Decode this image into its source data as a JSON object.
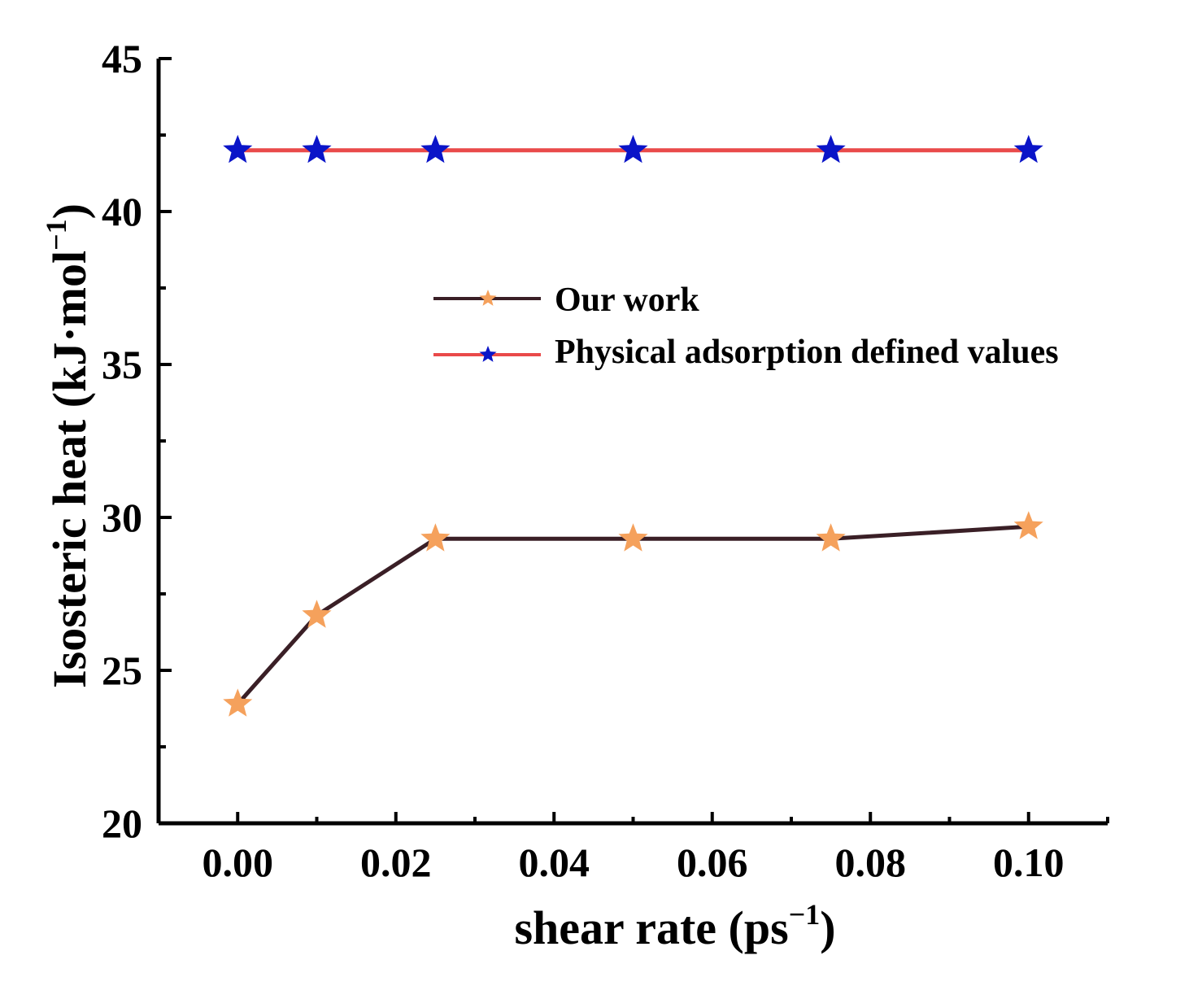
{
  "chart_data": {
    "type": "line",
    "title": "",
    "xlabel": "shear rate (ps",
    "xlabel_sup": "−1",
    "xlabel_close": ")",
    "ylabel": "Isosteric heat (kJ·mol",
    "ylabel_sup": "−1",
    "ylabel_close": ")",
    "xlim": [
      -0.01,
      0.11
    ],
    "ylim": [
      20,
      45
    ],
    "xticks": [
      0.0,
      0.02,
      0.04,
      0.06,
      0.08,
      0.1
    ],
    "xtick_labels": [
      "0.00",
      "0.02",
      "0.04",
      "0.06",
      "0.08",
      "0.10"
    ],
    "yticks": [
      20,
      25,
      30,
      35,
      40,
      45
    ],
    "ytick_labels": [
      "20",
      "25",
      "30",
      "35",
      "40",
      "45"
    ],
    "legend_position": "center-right",
    "series": [
      {
        "name": "Our work",
        "line_color": "#3a1f26",
        "marker_color": "#f5a15c",
        "marker": "star",
        "x": [
          0.0,
          0.01,
          0.025,
          0.05,
          0.075,
          0.1
        ],
        "y": [
          23.9,
          26.8,
          29.3,
          29.3,
          29.3,
          29.7
        ]
      },
      {
        "name": "Physical adsorption defined values",
        "line_color": "#e94a4a",
        "marker_color": "#0a14c8",
        "marker": "star",
        "x": [
          0.0,
          0.01,
          0.025,
          0.05,
          0.075,
          0.1
        ],
        "y": [
          42,
          42,
          42,
          42,
          42,
          42
        ]
      }
    ]
  }
}
